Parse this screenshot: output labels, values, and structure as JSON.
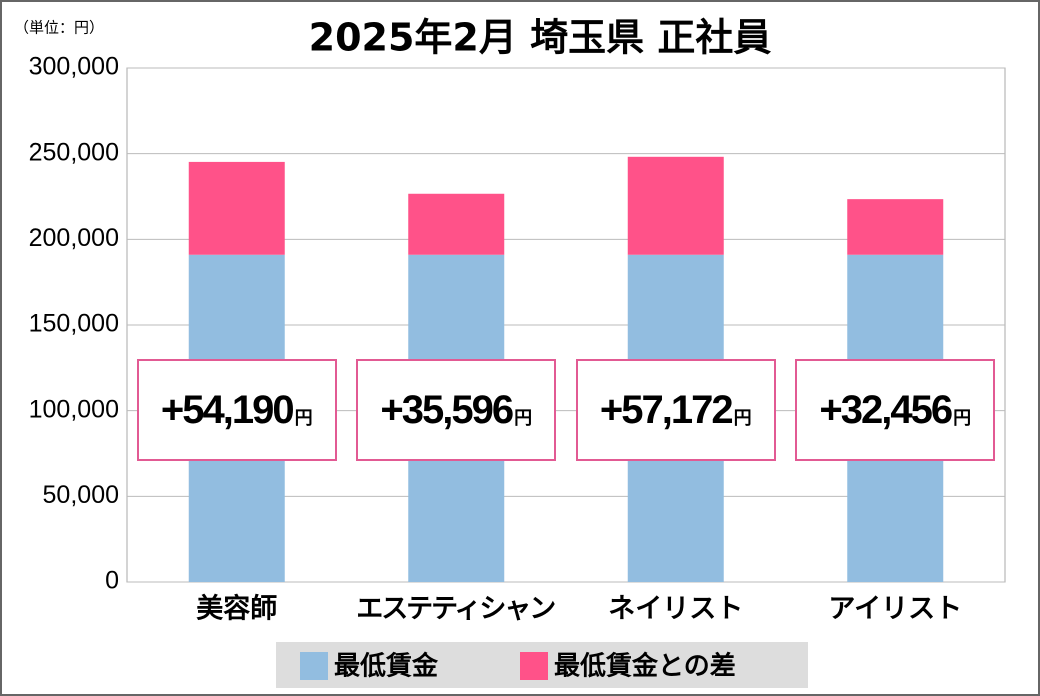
{
  "chart_data": {
    "type": "stacked_bar",
    "title": "2025年2月 埼玉県 正社員",
    "unit_label": "（単位：円）",
    "categories": [
      "美容師",
      "エステティシャン",
      "ネイリスト",
      "アイリスト"
    ],
    "series": [
      {
        "name": "最低賃金",
        "color": "#92bde0",
        "values": [
          191000,
          191000,
          191000,
          191000
        ]
      },
      {
        "name": "最低賃金との差",
        "color": "#ff5289",
        "values": [
          54190,
          35596,
          57172,
          32456
        ],
        "value_labels": [
          "+54,190円",
          "+35,596円",
          "+57,172円",
          "+32,456円"
        ]
      }
    ],
    "ylim": [
      0,
      300000
    ],
    "yticks": [
      0,
      {
        "value": 50000,
        "label": "50,000"
      },
      {
        "value": 100000,
        "label": "100,000"
      },
      {
        "value": 150000,
        "label": "150,000"
      },
      {
        "value": 200000,
        "label": "200,000"
      },
      {
        "value": 250000,
        "label": "250,000"
      },
      {
        "value": 300000,
        "label": "300,000"
      }
    ],
    "grid": true
  }
}
